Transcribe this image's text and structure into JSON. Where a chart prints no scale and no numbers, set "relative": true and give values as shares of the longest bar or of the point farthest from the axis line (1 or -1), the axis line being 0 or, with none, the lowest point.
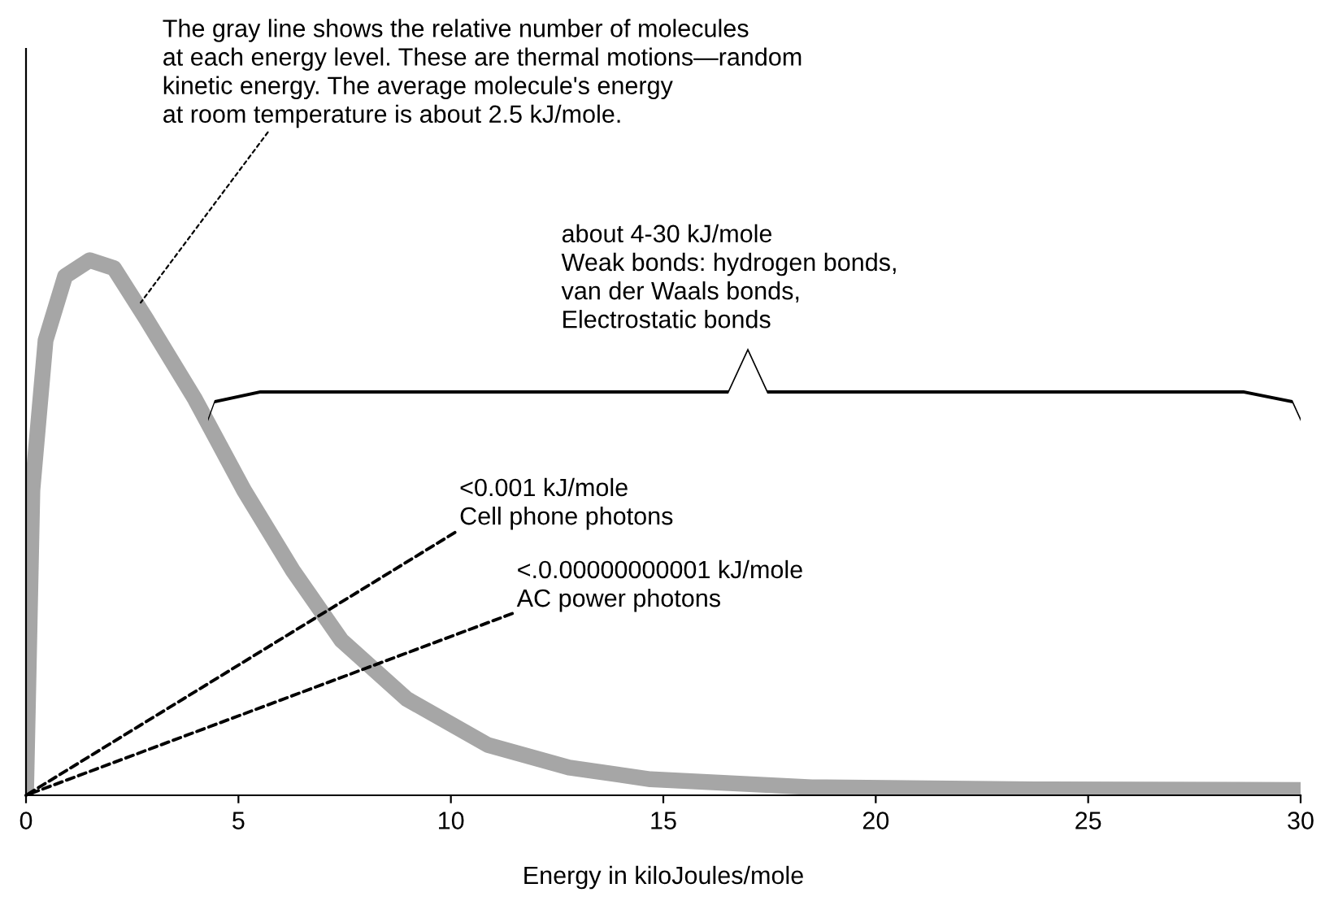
{
  "chart_data": {
    "type": "line",
    "relative": true,
    "xlabel": "Energy in kiloJoules/mole",
    "x": [
      0,
      0.15,
      0.46,
      0.92,
      1.5,
      2.07,
      2.83,
      3.98,
      5.13,
      6.28,
      7.42,
      8.96,
      10.87,
      12.78,
      14.7,
      18.5,
      24,
      30
    ],
    "series": [
      {
        "color": "#a6a6a6",
        "values": [
          0,
          0.57,
          0.85,
          0.97,
          1.0,
          0.985,
          0.89,
          0.74,
          0.57,
          0.42,
          0.29,
          0.18,
          0.094,
          0.052,
          0.03,
          0.015,
          0.011,
          0.01
        ]
      }
    ],
    "xlim": [
      0,
      30
    ],
    "xticks": [
      0,
      5,
      10,
      15,
      20,
      25,
      30
    ],
    "tick_labels": "x",
    "grid": false,
    "marker": "none",
    "line_style": "solid",
    "annotations": [
      "The gray line shows the relative number of molecules\nat each energy level. These are thermal motions—random\nkinetic energy. The average molecule's energy\nat room temperature is about 2.5 kJ/mole.",
      "about 4-30 kJ/mole\nWeak bonds: hydrogen bonds,\nvan der Waals bonds,\nElectrostatic bonds",
      "<0.001 kJ/mole\nCell phone photons",
      "<.0.00000000001 kJ/mole\nAC power photons"
    ]
  }
}
